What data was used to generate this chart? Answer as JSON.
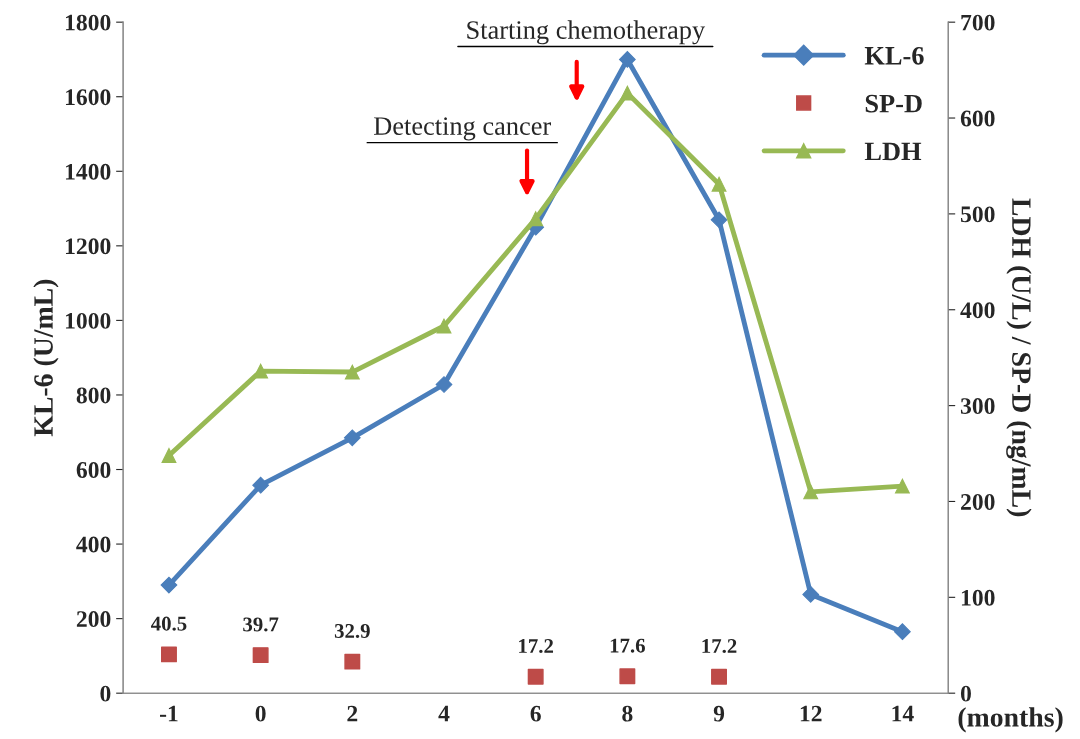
{
  "chart_data": {
    "type": "line",
    "xlabel": "(months)",
    "ylabel": "KL-6 (U/mL)",
    "y2label": "LDH (U/L) / SP-D (ng/mL)",
    "categories": [
      "-1",
      "0",
      "2",
      "4",
      "6",
      "8",
      "9",
      "12",
      "14"
    ],
    "series": [
      {
        "name": "KL-6",
        "marker": "diamond",
        "color": "#4a7ebb",
        "values": [
          290,
          558,
          685,
          828,
          1250,
          1700,
          1270,
          265,
          165
        ]
      },
      {
        "name": "SP-D",
        "type": "scatter",
        "marker": "square",
        "axis": "y2",
        "color": "#be4b48",
        "values": [
          40.5,
          39.7,
          32.9,
          null,
          17.2,
          17.6,
          17.2,
          null,
          null
        ],
        "data_labels": true
      },
      {
        "name": "LDH",
        "marker": "triangle",
        "axis": "y2",
        "color": "#98b954",
        "values": [
          248,
          336,
          335,
          383,
          495,
          626,
          531,
          210,
          216
        ]
      }
    ],
    "ylim": [
      0,
      1800
    ],
    "yticks": [
      0,
      200,
      400,
      600,
      800,
      1000,
      1200,
      1400,
      1600,
      1800
    ],
    "y2lim": [
      0,
      700
    ],
    "y2ticks": [
      0,
      100,
      200,
      300,
      400,
      500,
      600,
      700
    ],
    "annotations": [
      "Detecting cancer",
      "Starting chemotherapy"
    ],
    "legend": "top right",
    "grid": false
  }
}
